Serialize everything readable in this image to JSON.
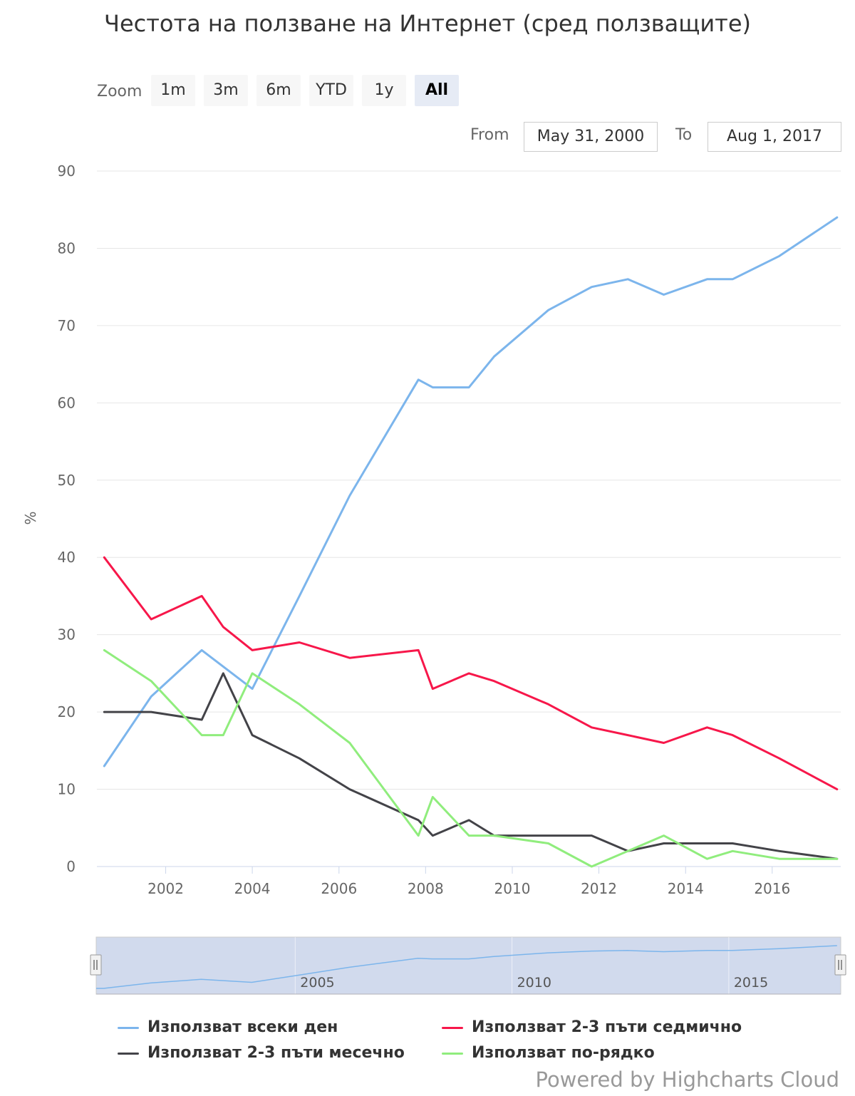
{
  "toolbar": {
    "zoom_label": "Zoom",
    "buttons": [
      "1m",
      "3m",
      "6m",
      "YTD",
      "1y",
      "All"
    ],
    "active": "All",
    "from_label": "From",
    "from_value": "May 31, 2000",
    "to_label": "To",
    "to_value": "Aug 1, 2017"
  },
  "navigator": {
    "tick_labels": [
      "2005",
      "2010",
      "2015"
    ]
  },
  "credits": "Powered by Highcharts Cloud",
  "colors": {
    "daily": "#7cb5ec",
    "weekly": "#f7174a",
    "monthly": "#434348",
    "rarely": "#90ed7d"
  },
  "chart_data": {
    "type": "line",
    "title": "Честота на ползване на Интернет (сред ползващите)",
    "ylabel": "%",
    "xlabel": "",
    "ylim": [
      0,
      90
    ],
    "yticks": [
      0,
      10,
      20,
      30,
      40,
      50,
      60,
      70,
      80,
      90
    ],
    "xlim": [
      "2000-05-31",
      "2017-08-01"
    ],
    "xticks": [
      "2002",
      "2004",
      "2006",
      "2008",
      "2010",
      "2012",
      "2014",
      "2016"
    ],
    "grid": true,
    "legend_position": "bottom",
    "series": [
      {
        "name": "Използват всеки ден",
        "color": "#7cb5ec",
        "points": [
          [
            "2000-08-01",
            13
          ],
          [
            "2001-09-01",
            22
          ],
          [
            "2002-11-01",
            28
          ],
          [
            "2004-01-01",
            23
          ],
          [
            "2005-02-01",
            35
          ],
          [
            "2006-04-01",
            48
          ],
          [
            "2007-11-01",
            63
          ],
          [
            "2008-03-01",
            62
          ],
          [
            "2009-01-01",
            62
          ],
          [
            "2009-08-01",
            66
          ],
          [
            "2010-11-01",
            72
          ],
          [
            "2011-11-01",
            75
          ],
          [
            "2012-09-01",
            76
          ],
          [
            "2013-07-01",
            74
          ],
          [
            "2014-07-01",
            76
          ],
          [
            "2015-02-01",
            76
          ],
          [
            "2016-03-01",
            79
          ],
          [
            "2017-07-01",
            84
          ]
        ]
      },
      {
        "name": "Използват 2-3 пъти седмично",
        "color": "#f7174a",
        "points": [
          [
            "2000-08-01",
            40
          ],
          [
            "2001-09-01",
            32
          ],
          [
            "2002-11-01",
            35
          ],
          [
            "2003-05-01",
            31
          ],
          [
            "2004-01-01",
            28
          ],
          [
            "2005-02-01",
            29
          ],
          [
            "2006-04-01",
            27
          ],
          [
            "2007-11-01",
            28
          ],
          [
            "2008-03-01",
            23
          ],
          [
            "2009-01-01",
            25
          ],
          [
            "2009-08-01",
            24
          ],
          [
            "2010-11-01",
            21
          ],
          [
            "2011-11-01",
            18
          ],
          [
            "2012-09-01",
            17
          ],
          [
            "2013-07-01",
            16
          ],
          [
            "2014-07-01",
            18
          ],
          [
            "2015-02-01",
            17
          ],
          [
            "2016-03-01",
            14
          ],
          [
            "2017-07-01",
            10
          ]
        ]
      },
      {
        "name": "Използват 2-3 пъти месечно",
        "color": "#434348",
        "points": [
          [
            "2000-08-01",
            20
          ],
          [
            "2001-09-01",
            20
          ],
          [
            "2002-11-01",
            19
          ],
          [
            "2003-05-01",
            25
          ],
          [
            "2004-01-01",
            17
          ],
          [
            "2005-02-01",
            14
          ],
          [
            "2006-04-01",
            10
          ],
          [
            "2007-11-01",
            6
          ],
          [
            "2008-03-01",
            4
          ],
          [
            "2009-01-01",
            6
          ],
          [
            "2009-08-01",
            4
          ],
          [
            "2010-11-01",
            4
          ],
          [
            "2011-11-01",
            4
          ],
          [
            "2012-09-01",
            2
          ],
          [
            "2013-07-01",
            3
          ],
          [
            "2014-07-01",
            3
          ],
          [
            "2015-02-01",
            3
          ],
          [
            "2016-03-01",
            2
          ],
          [
            "2017-07-01",
            1
          ]
        ]
      },
      {
        "name": "Използват по-рядко",
        "color": "#90ed7d",
        "points": [
          [
            "2000-08-01",
            28
          ],
          [
            "2001-09-01",
            24
          ],
          [
            "2002-11-01",
            17
          ],
          [
            "2003-05-01",
            17
          ],
          [
            "2004-01-01",
            25
          ],
          [
            "2005-02-01",
            21
          ],
          [
            "2006-04-01",
            16
          ],
          [
            "2007-11-01",
            4
          ],
          [
            "2008-03-01",
            9
          ],
          [
            "2009-01-01",
            4
          ],
          [
            "2009-08-01",
            4
          ],
          [
            "2010-11-01",
            3
          ],
          [
            "2011-11-01",
            0
          ],
          [
            "2012-09-01",
            2
          ],
          [
            "2013-07-01",
            4
          ],
          [
            "2014-07-01",
            1
          ],
          [
            "2015-02-01",
            2
          ],
          [
            "2016-03-01",
            1
          ],
          [
            "2017-07-01",
            1
          ]
        ]
      }
    ]
  }
}
